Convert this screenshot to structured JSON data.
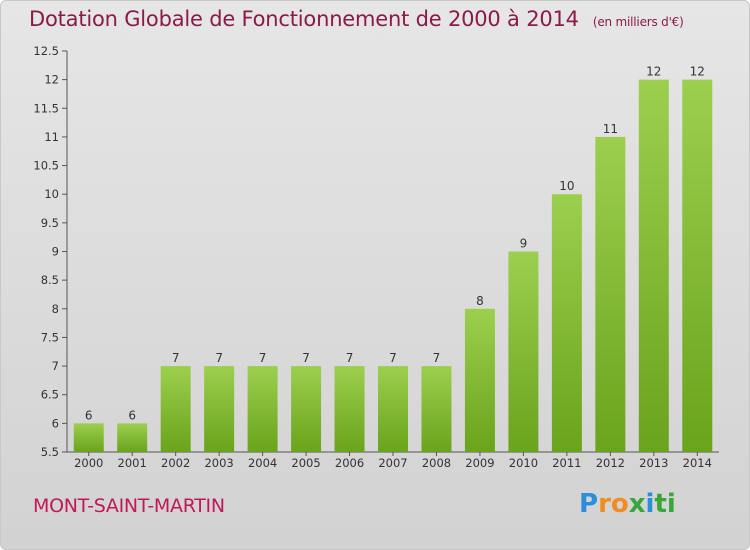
{
  "title": "Dotation Globale de Fonctionnement de 2000 à 2014",
  "subtitle": "(en milliers d'€)",
  "city": "MONT-SAINT-MARTIN",
  "logo_letters": [
    "P",
    "r",
    "o",
    "x",
    "i",
    "ti"
  ],
  "colors": {
    "bar_light": "#9ccf4e",
    "bar_dark": "#6aa31c",
    "title": "#8b1a4a",
    "city": "#c2185b"
  },
  "chart_data": {
    "type": "bar",
    "categories": [
      "2000",
      "2001",
      "2002",
      "2003",
      "2004",
      "2005",
      "2006",
      "2007",
      "2008",
      "2009",
      "2010",
      "2011",
      "2012",
      "2013",
      "2014"
    ],
    "values": [
      6,
      6,
      7,
      7,
      7,
      7,
      7,
      7,
      7,
      8,
      9,
      10,
      11,
      12,
      12
    ],
    "data_labels": [
      "6",
      "6",
      "7",
      "7",
      "7",
      "7",
      "7",
      "7",
      "7",
      "8",
      "9",
      "10",
      "11",
      "12",
      "12"
    ],
    "ylim": [
      5.5,
      12.5
    ],
    "yticks": [
      5.5,
      6,
      6.5,
      7,
      7.5,
      8,
      8.5,
      9,
      9.5,
      10,
      10.5,
      11,
      11.5,
      12,
      12.5
    ],
    "ytick_labels": [
      "5.5",
      "6",
      "6.5",
      "7",
      "7.5",
      "8",
      "8.5",
      "9",
      "9.5",
      "10",
      "10.5",
      "11",
      "11.5",
      "12",
      "12.5"
    ],
    "xlabel": "",
    "ylabel": "",
    "grid": false,
    "legend": "none"
  }
}
